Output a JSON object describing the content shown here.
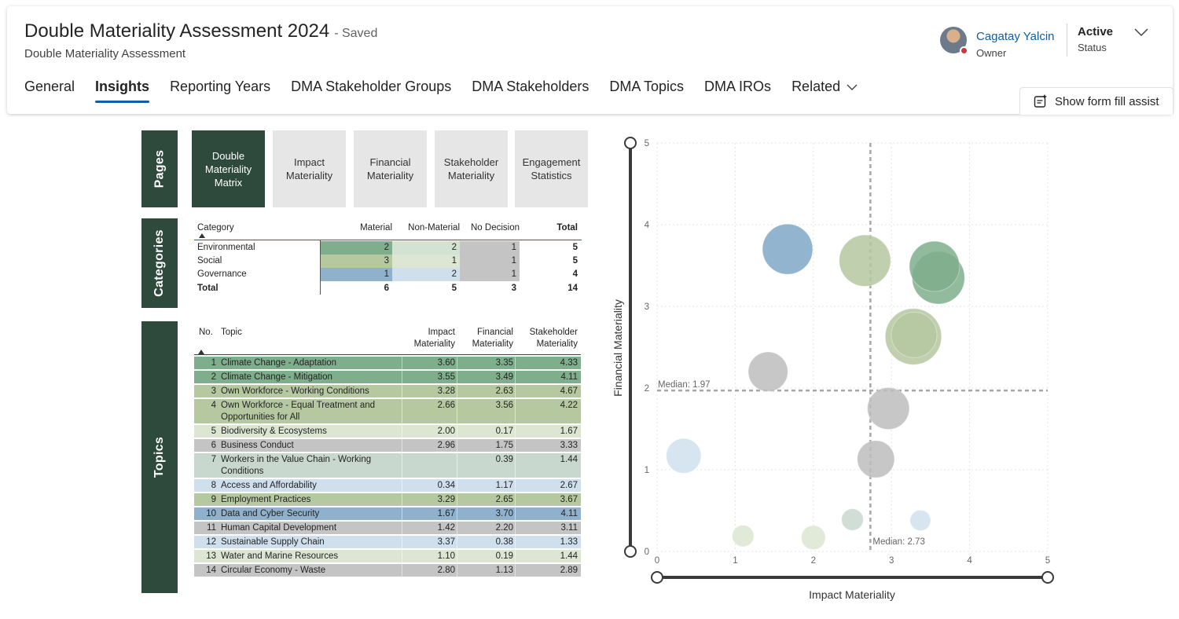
{
  "header": {
    "title": "Double Materiality Assessment 2024",
    "saved": "- Saved",
    "subtitle": "Double Materiality Assessment",
    "owner_name": "Cagatay Yalcin",
    "owner_role": "Owner",
    "status_value": "Active",
    "status_label": "Status",
    "assist_label": "Show form fill assist"
  },
  "tabs": [
    {
      "label": "General"
    },
    {
      "label": "Insights"
    },
    {
      "label": "Reporting Years"
    },
    {
      "label": "DMA Stakeholder Groups"
    },
    {
      "label": "DMA Stakeholders"
    },
    {
      "label": "DMA Topics"
    },
    {
      "label": "DMA IROs"
    },
    {
      "label": "Related"
    }
  ],
  "sidebars": {
    "pages": "Pages",
    "categories": "Categories",
    "topics": "Topics"
  },
  "pages": [
    {
      "label": "Double Materiality Matrix"
    },
    {
      "label": "Impact Materiality"
    },
    {
      "label": "Financial Materiality"
    },
    {
      "label": "Stakeholder Materiality"
    },
    {
      "label": "Engagement Statistics"
    }
  ],
  "categories": {
    "headers": {
      "category": "Category",
      "material": "Material",
      "non_material": "Non-Material",
      "no_decision": "No Decision",
      "total": "Total"
    },
    "rows": [
      {
        "name": "Environmental",
        "material": "2",
        "non_material": "2",
        "no_decision": "1",
        "total": "5"
      },
      {
        "name": "Social",
        "material": "3",
        "non_material": "1",
        "no_decision": "1",
        "total": "5"
      },
      {
        "name": "Governance",
        "material": "1",
        "non_material": "2",
        "no_decision": "1",
        "total": "4"
      }
    ],
    "total": {
      "name": "Total",
      "material": "6",
      "non_material": "5",
      "no_decision": "3",
      "total": "14"
    },
    "colors": {
      "env_material": "#7fae8c",
      "env_non": "#d2e3d4",
      "soc_material": "#b5c8a0",
      "soc_non": "#dce6d2",
      "gov_material": "#8fb1cc",
      "gov_non": "#cfe0ec",
      "no_decision": "#c4c4c4"
    }
  },
  "topics": {
    "headers": {
      "no": "No.",
      "topic": "Topic",
      "impact": [
        "Impact",
        "Materiality"
      ],
      "financial": [
        "Financial",
        "Materiality"
      ],
      "stakeholder": [
        "Stakeholder",
        "Materiality"
      ]
    },
    "rows": [
      {
        "no": "1",
        "topic": [
          "Climate Change - Adaptation"
        ],
        "impact": "3.60",
        "financial": "3.35",
        "stakeholder": "4.33",
        "color": "#7fae8c"
      },
      {
        "no": "2",
        "topic": [
          "Climate Change - Mitigation"
        ],
        "impact": "3.55",
        "financial": "3.49",
        "stakeholder": "4.11",
        "color": "#7fae8c"
      },
      {
        "no": "3",
        "topic": [
          "Own Workforce - Working Conditions"
        ],
        "impact": "3.28",
        "financial": "2.63",
        "stakeholder": "4.67",
        "color": "#b5c8a0"
      },
      {
        "no": "4",
        "topic": [
          "Own Workforce - Equal Treatment and",
          "Opportunities for All"
        ],
        "impact": "2.66",
        "financial": "3.56",
        "stakeholder": "4.22",
        "color": "#b5c8a0"
      },
      {
        "no": "5",
        "topic": [
          "Biodiversity & Ecosystems"
        ],
        "impact": "2.00",
        "financial": "0.17",
        "stakeholder": "1.67",
        "color": "#dce6d2"
      },
      {
        "no": "6",
        "topic": [
          "Business Conduct"
        ],
        "impact": "2.96",
        "financial": "1.75",
        "stakeholder": "3.33",
        "color": "#c4c4c4"
      },
      {
        "no": "7",
        "topic": [
          "Workers in the Value Chain - Working",
          "Conditions"
        ],
        "impact": "",
        "financial": "0.39",
        "stakeholder": "1.44",
        "color": "#c8d8ce"
      },
      {
        "no": "8",
        "topic": [
          "Access and Affordability"
        ],
        "impact": "0.34",
        "financial": "1.17",
        "stakeholder": "2.67",
        "color": "#cfe0ec"
      },
      {
        "no": "9",
        "topic": [
          "Employment Practices"
        ],
        "impact": "3.29",
        "financial": "2.65",
        "stakeholder": "3.67",
        "color": "#b5c8a0"
      },
      {
        "no": "10",
        "topic": [
          "Data and Cyber Security"
        ],
        "impact": "1.67",
        "financial": "3.70",
        "stakeholder": "4.11",
        "color": "#8fb1cc"
      },
      {
        "no": "11",
        "topic": [
          "Human Capital Development"
        ],
        "impact": "1.42",
        "financial": "2.20",
        "stakeholder": "3.11",
        "color": "#c4c4c4"
      },
      {
        "no": "12",
        "topic": [
          "Sustainable Supply Chain"
        ],
        "impact": "3.37",
        "financial": "0.38",
        "stakeholder": "1.33",
        "color": "#cfe0ec"
      },
      {
        "no": "13",
        "topic": [
          "Water and Marine Resources"
        ],
        "impact": "1.10",
        "financial": "0.19",
        "stakeholder": "1.44",
        "color": "#dce6d2"
      },
      {
        "no": "14",
        "topic": [
          "Circular Economy - Waste"
        ],
        "impact": "2.80",
        "financial": "1.13",
        "stakeholder": "2.89",
        "color": "#c4c4c4"
      }
    ]
  },
  "chart_data": {
    "type": "scatter",
    "xlabel": "Impact Materiality",
    "ylabel": "Financial Materiality",
    "xlim": [
      0,
      5
    ],
    "ylim": [
      0,
      5
    ],
    "xticks": [
      "0",
      "1",
      "2",
      "3",
      "4",
      "5"
    ],
    "yticks": [
      "0",
      "1",
      "2",
      "3",
      "4",
      "5"
    ],
    "grid": true,
    "median_x_label": "Median: 2.73",
    "median_x": 2.73,
    "median_y_label": "Median: 1.97",
    "median_y": 1.97,
    "points": [
      {
        "x": 3.6,
        "y": 3.35,
        "size": 4.33,
        "color": "#7fae8c"
      },
      {
        "x": 3.55,
        "y": 3.49,
        "size": 4.11,
        "color": "#7fae8c"
      },
      {
        "x": 3.28,
        "y": 2.63,
        "size": 4.67,
        "color": "#b5c8a0"
      },
      {
        "x": 2.66,
        "y": 3.56,
        "size": 4.22,
        "color": "#b5c8a0"
      },
      {
        "x": 2.0,
        "y": 0.17,
        "size": 1.67,
        "color": "#dce6d2"
      },
      {
        "x": 2.96,
        "y": 1.75,
        "size": 3.33,
        "color": "#bdbdbd"
      },
      {
        "x": 0.34,
        "y": 1.17,
        "size": 2.67,
        "color": "#cfe0ec"
      },
      {
        "x": 3.29,
        "y": 2.65,
        "size": 3.67,
        "color": "#b5c8a0"
      },
      {
        "x": 1.67,
        "y": 3.7,
        "size": 4.11,
        "color": "#7fa7c7"
      },
      {
        "x": 1.42,
        "y": 2.2,
        "size": 3.11,
        "color": "#bdbdbd"
      },
      {
        "x": 3.37,
        "y": 0.38,
        "size": 1.33,
        "color": "#cfe0ec"
      },
      {
        "x": 1.1,
        "y": 0.19,
        "size": 1.44,
        "color": "#dce6d2"
      },
      {
        "x": 2.8,
        "y": 1.13,
        "size": 2.89,
        "color": "#bdbdbd"
      },
      {
        "x": 2.5,
        "y": 0.39,
        "size": 1.44,
        "color": "#c8d8ce"
      }
    ]
  }
}
